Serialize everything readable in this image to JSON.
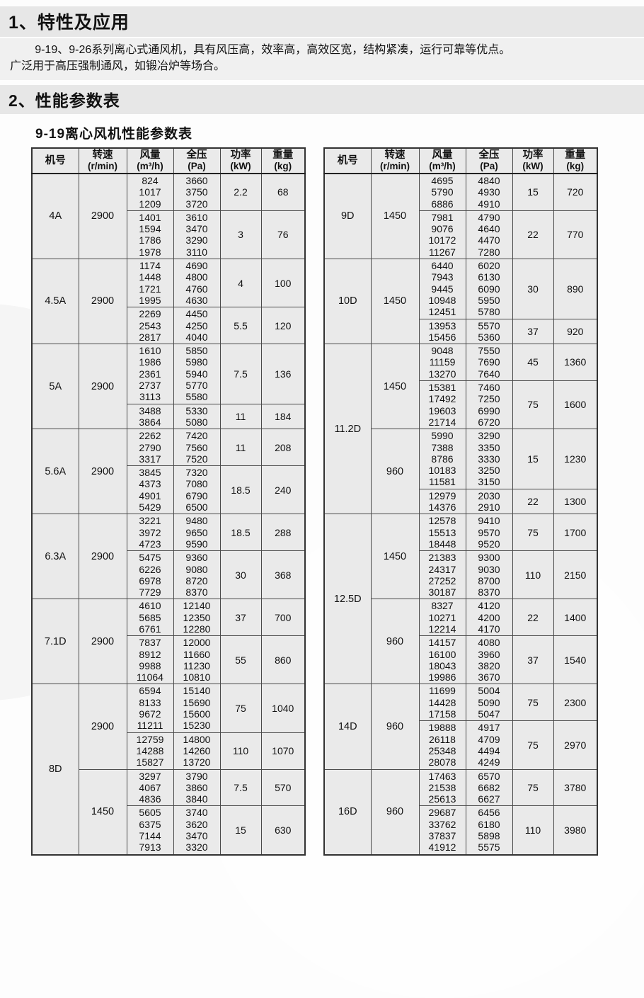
{
  "heading1": "1、特性及应用",
  "intro": [
    "9-19、9-26系列离心式通风机，具有风压高，效率高，高效区宽，结构紧凑，运行可靠等优点。",
    "广泛用于高压强制通风，如锻冶炉等场合。"
  ],
  "heading2": "2、性能参数表",
  "table_title": "9-19离心风机性能参数表",
  "table_headers": [
    {
      "key": "model",
      "label": "机号",
      "unit": ""
    },
    {
      "key": "rpm",
      "label": "转速",
      "unit": "(r/min)"
    },
    {
      "key": "flow",
      "label": "风量",
      "unit": "(m³/h)"
    },
    {
      "key": "pressure",
      "label": "全压",
      "unit": "(Pa)"
    },
    {
      "key": "power",
      "label": "功率",
      "unit": "(kW)"
    },
    {
      "key": "weight",
      "label": "重量",
      "unit": "(kg)"
    }
  ],
  "tables": [
    {
      "models": [
        {
          "model": "4A",
          "speeds": [
            {
              "rpm": "2900",
              "rows": [
                {
                  "flow": [
                    "824",
                    "1017",
                    "1209"
                  ],
                  "pressure": [
                    "3660",
                    "3750",
                    "3720"
                  ],
                  "power": "2.2",
                  "weight": "68"
                },
                {
                  "flow": [
                    "1401",
                    "1594",
                    "1786",
                    "1978"
                  ],
                  "pressure": [
                    "3610",
                    "3470",
                    "3290",
                    "3110"
                  ],
                  "power": "3",
                  "weight": "76"
                }
              ]
            }
          ]
        },
        {
          "model": "4.5A",
          "speeds": [
            {
              "rpm": "2900",
              "rows": [
                {
                  "flow": [
                    "1174",
                    "1448",
                    "1721",
                    "1995"
                  ],
                  "pressure": [
                    "4690",
                    "4800",
                    "4760",
                    "4630"
                  ],
                  "power": "4",
                  "weight": "100"
                },
                {
                  "flow": [
                    "2269",
                    "2543",
                    "2817"
                  ],
                  "pressure": [
                    "4450",
                    "4250",
                    "4040"
                  ],
                  "power": "5.5",
                  "weight": "120"
                }
              ]
            }
          ]
        },
        {
          "model": "5A",
          "speeds": [
            {
              "rpm": "2900",
              "rows": [
                {
                  "flow": [
                    "1610",
                    "1986",
                    "2361",
                    "2737",
                    "3113"
                  ],
                  "pressure": [
                    "5850",
                    "5980",
                    "5940",
                    "5770",
                    "5580"
                  ],
                  "power": "7.5",
                  "weight": "136"
                },
                {
                  "flow": [
                    "3488",
                    "3864"
                  ],
                  "pressure": [
                    "5330",
                    "5080"
                  ],
                  "power": "11",
                  "weight": "184"
                }
              ]
            }
          ]
        },
        {
          "model": "5.6A",
          "speeds": [
            {
              "rpm": "2900",
              "rows": [
                {
                  "flow": [
                    "2262",
                    "2790",
                    "3317"
                  ],
                  "pressure": [
                    "7420",
                    "7560",
                    "7520"
                  ],
                  "power": "11",
                  "weight": "208"
                },
                {
                  "flow": [
                    "3845",
                    "4373",
                    "4901",
                    "5429"
                  ],
                  "pressure": [
                    "7320",
                    "7080",
                    "6790",
                    "6500"
                  ],
                  "power": "18.5",
                  "weight": "240"
                }
              ]
            }
          ]
        },
        {
          "model": "6.3A",
          "speeds": [
            {
              "rpm": "2900",
              "rows": [
                {
                  "flow": [
                    "3221",
                    "3972",
                    "4723"
                  ],
                  "pressure": [
                    "9480",
                    "9650",
                    "9590"
                  ],
                  "power": "18.5",
                  "weight": "288"
                },
                {
                  "flow": [
                    "5475",
                    "6226",
                    "6978",
                    "7729"
                  ],
                  "pressure": [
                    "9360",
                    "9080",
                    "8720",
                    "8370"
                  ],
                  "power": "30",
                  "weight": "368"
                }
              ]
            }
          ]
        },
        {
          "model": "7.1D",
          "speeds": [
            {
              "rpm": "2900",
              "rows": [
                {
                  "flow": [
                    "4610",
                    "5685",
                    "6761"
                  ],
                  "pressure": [
                    "12140",
                    "12350",
                    "12280"
                  ],
                  "power": "37",
                  "weight": "700"
                },
                {
                  "flow": [
                    "7837",
                    "8912",
                    "9988",
                    "11064"
                  ],
                  "pressure": [
                    "12000",
                    "11660",
                    "11230",
                    "10810"
                  ],
                  "power": "55",
                  "weight": "860"
                }
              ]
            }
          ]
        },
        {
          "model": "8D",
          "speeds": [
            {
              "rpm": "2900",
              "rows": [
                {
                  "flow": [
                    "6594",
                    "8133",
                    "9672",
                    "11211"
                  ],
                  "pressure": [
                    "15140",
                    "15690",
                    "15600",
                    "15230"
                  ],
                  "power": "75",
                  "weight": "1040"
                },
                {
                  "flow": [
                    "12759",
                    "14288",
                    "15827"
                  ],
                  "pressure": [
                    "14800",
                    "14260",
                    "13720"
                  ],
                  "power": "110",
                  "weight": "1070"
                }
              ]
            },
            {
              "rpm": "1450",
              "rows": [
                {
                  "flow": [
                    "3297",
                    "4067",
                    "4836"
                  ],
                  "pressure": [
                    "3790",
                    "3860",
                    "3840"
                  ],
                  "power": "7.5",
                  "weight": "570"
                },
                {
                  "flow": [
                    "5605",
                    "6375",
                    "7144",
                    "7913"
                  ],
                  "pressure": [
                    "3740",
                    "3620",
                    "3470",
                    "3320"
                  ],
                  "power": "15",
                  "weight": "630"
                }
              ]
            }
          ]
        }
      ]
    },
    {
      "models": [
        {
          "model": "9D",
          "speeds": [
            {
              "rpm": "1450",
              "rows": [
                {
                  "flow": [
                    "4695",
                    "5790",
                    "6886"
                  ],
                  "pressure": [
                    "4840",
                    "4930",
                    "4910"
                  ],
                  "power": "15",
                  "weight": "720"
                },
                {
                  "flow": [
                    "7981",
                    "9076",
                    "10172",
                    "11267"
                  ],
                  "pressure": [
                    "4790",
                    "4640",
                    "4470",
                    "7280"
                  ],
                  "power": "22",
                  "weight": "770"
                }
              ]
            }
          ]
        },
        {
          "model": "10D",
          "speeds": [
            {
              "rpm": "1450",
              "rows": [
                {
                  "flow": [
                    "6440",
                    "7943",
                    "9445",
                    "10948",
                    "12451"
                  ],
                  "pressure": [
                    "6020",
                    "6130",
                    "6090",
                    "5950",
                    "5780"
                  ],
                  "power": "30",
                  "weight": "890"
                },
                {
                  "flow": [
                    "13953",
                    "15456"
                  ],
                  "pressure": [
                    "5570",
                    "5360"
                  ],
                  "power": "37",
                  "weight": "920"
                }
              ]
            }
          ]
        },
        {
          "model": "11.2D",
          "speeds": [
            {
              "rpm": "1450",
              "rows": [
                {
                  "flow": [
                    "9048",
                    "11159",
                    "13270"
                  ],
                  "pressure": [
                    "7550",
                    "7690",
                    "7640"
                  ],
                  "power": "45",
                  "weight": "1360"
                },
                {
                  "flow": [
                    "15381",
                    "17492",
                    "19603",
                    "21714"
                  ],
                  "pressure": [
                    "7460",
                    "7250",
                    "6990",
                    "6720"
                  ],
                  "power": "75",
                  "weight": "1600"
                }
              ]
            },
            {
              "rpm": "960",
              "rows": [
                {
                  "flow": [
                    "5990",
                    "7388",
                    "8786",
                    "10183",
                    "11581"
                  ],
                  "pressure": [
                    "3290",
                    "3350",
                    "3330",
                    "3250",
                    "3150"
                  ],
                  "power": "15",
                  "weight": "1230"
                },
                {
                  "flow": [
                    "12979",
                    "14376"
                  ],
                  "pressure": [
                    "2030",
                    "2910"
                  ],
                  "power": "22",
                  "weight": "1300"
                }
              ]
            }
          ]
        },
        {
          "model": "12.5D",
          "speeds": [
            {
              "rpm": "1450",
              "rows": [
                {
                  "flow": [
                    "12578",
                    "15513",
                    "18448"
                  ],
                  "pressure": [
                    "9410",
                    "9570",
                    "9520"
                  ],
                  "power": "75",
                  "weight": "1700"
                },
                {
                  "flow": [
                    "21383",
                    "24317",
                    "27252",
                    "30187"
                  ],
                  "pressure": [
                    "9300",
                    "9030",
                    "8700",
                    "8370"
                  ],
                  "power": "110",
                  "weight": "2150"
                }
              ]
            },
            {
              "rpm": "960",
              "rows": [
                {
                  "flow": [
                    "8327",
                    "10271",
                    "12214"
                  ],
                  "pressure": [
                    "4120",
                    "4200",
                    "4170"
                  ],
                  "power": "22",
                  "weight": "1400"
                },
                {
                  "flow": [
                    "14157",
                    "16100",
                    "18043",
                    "19986"
                  ],
                  "pressure": [
                    "4080",
                    "3960",
                    "3820",
                    "3670"
                  ],
                  "power": "37",
                  "weight": "1540"
                }
              ]
            }
          ]
        },
        {
          "model": "14D",
          "speeds": [
            {
              "rpm": "960",
              "rows": [
                {
                  "flow": [
                    "11699",
                    "14428",
                    "17158"
                  ],
                  "pressure": [
                    "5004",
                    "5090",
                    "5047"
                  ],
                  "power": "75",
                  "weight": "2300"
                },
                {
                  "flow": [
                    "19888",
                    "26118",
                    "25348",
                    "28078"
                  ],
                  "pressure": [
                    "4917",
                    "4709",
                    "4494",
                    "4249"
                  ],
                  "power": "75",
                  "weight": "2970"
                }
              ]
            }
          ]
        },
        {
          "model": "16D",
          "speeds": [
            {
              "rpm": "960",
              "rows": [
                {
                  "flow": [
                    "17463",
                    "21538",
                    "25613"
                  ],
                  "pressure": [
                    "6570",
                    "6682",
                    "6627"
                  ],
                  "power": "75",
                  "weight": "3780"
                },
                {
                  "flow": [
                    "29687",
                    "33762",
                    "37837",
                    "41912"
                  ],
                  "pressure": [
                    "6456",
                    "6180",
                    "5898",
                    "5575"
                  ],
                  "power": "110",
                  "weight": "3980"
                }
              ]
            }
          ]
        }
      ]
    }
  ]
}
